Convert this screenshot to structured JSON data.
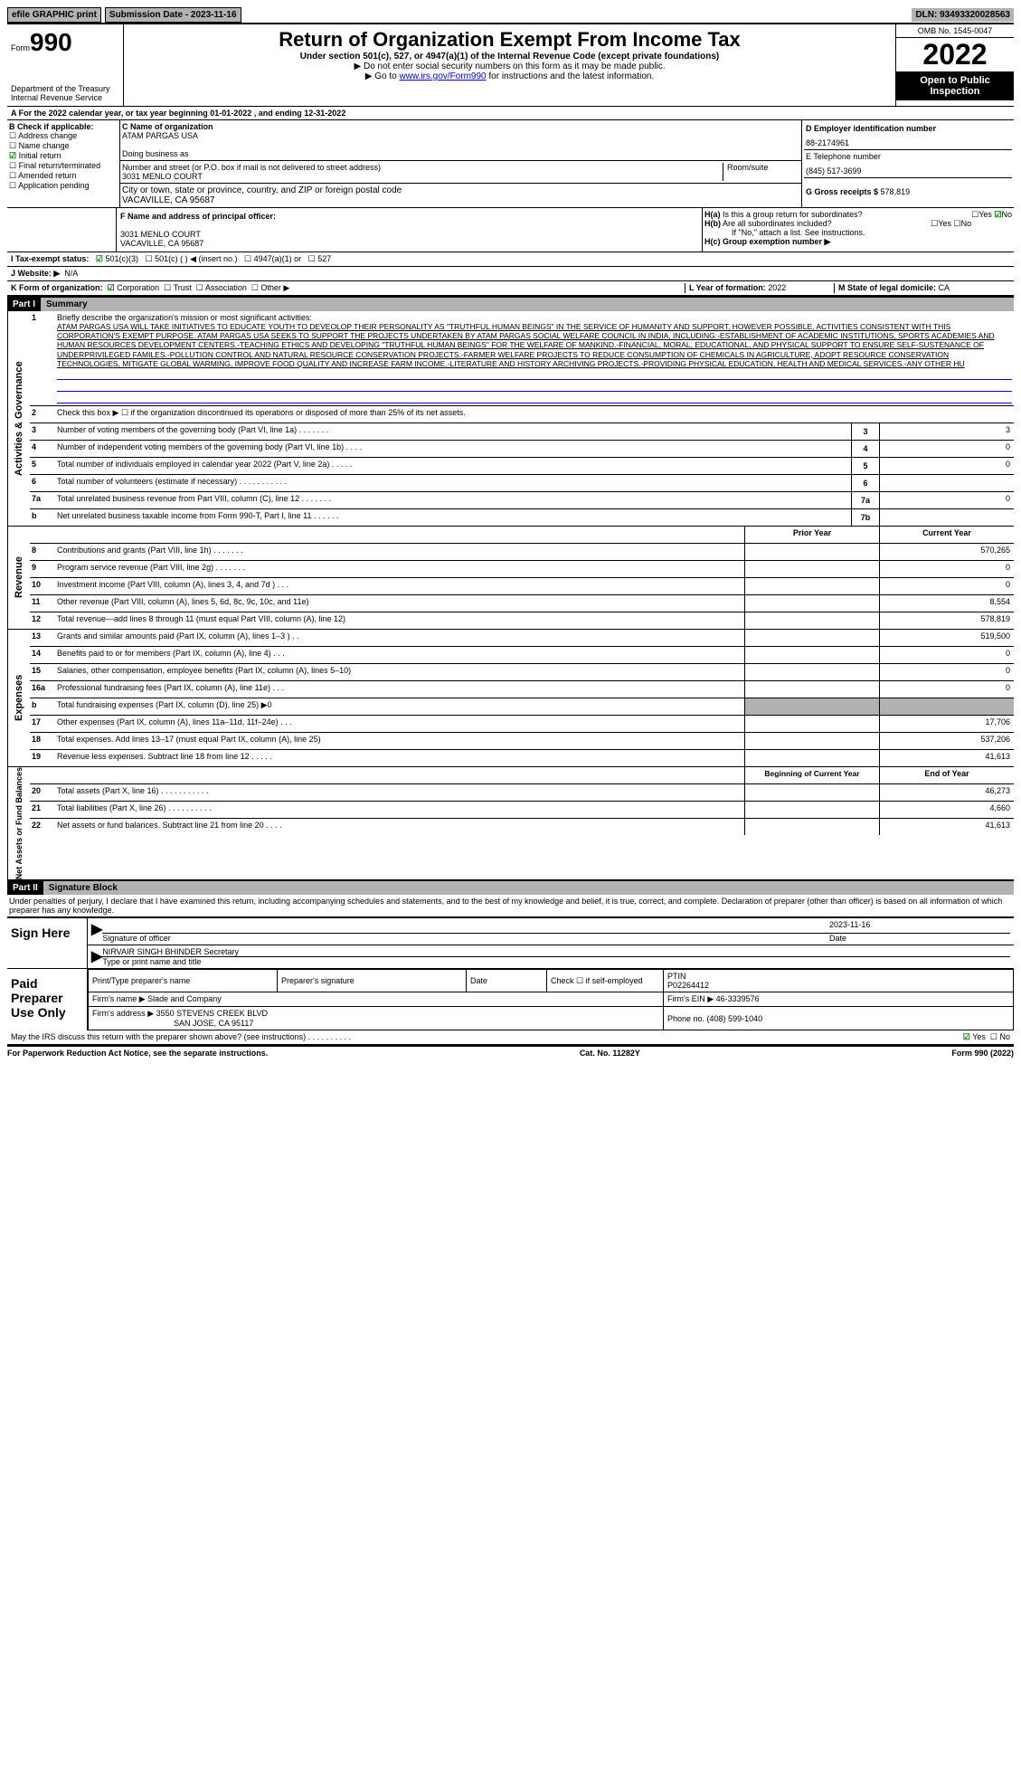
{
  "topbar": {
    "efile": "efile GRAPHIC print",
    "subdate_label": "Submission Date - ",
    "subdate": "2023-11-16",
    "dln_label": "DLN: ",
    "dln": "93493320028563"
  },
  "header": {
    "form_prefix": "Form",
    "form_number": "990",
    "title": "Return of Organization Exempt From Income Tax",
    "subtitle": "Under section 501(c), 527, or 4947(a)(1) of the Internal Revenue Code (except private foundations)",
    "note1": "▶ Do not enter social security numbers on this form as it may be made public.",
    "note2_pre": "▶ Go to ",
    "note2_link": "www.irs.gov/Form990",
    "note2_post": " for instructions and the latest information.",
    "dept": "Department of the Treasury",
    "irs": "Internal Revenue Service",
    "omb": "OMB No. 1545-0047",
    "year": "2022",
    "open": "Open to Public Inspection"
  },
  "line_a": "A For the 2022 calendar year, or tax year beginning 01-01-2022    , and ending 12-31-2022",
  "col_b": {
    "header": "B Check if applicable:",
    "items": [
      "Address change",
      "Name change",
      "Initial return",
      "Final return/terminated",
      "Amended return",
      "Application pending"
    ],
    "checked_index": 2
  },
  "col_c": {
    "name_label": "C Name of organization",
    "name": "ATAM PARGAS USA",
    "dba_label": "Doing business as",
    "addr_label": "Number and street (or P.O. box if mail is not delivered to street address)",
    "room_label": "Room/suite",
    "addr": "3031 MENLO COURT",
    "city_label": "City or town, state or province, country, and ZIP or foreign postal code",
    "city": "VACAVILLE, CA  95687"
  },
  "col_d": {
    "ein_label": "D Employer identification number",
    "ein": "88-2174961",
    "phone_label": "E Telephone number",
    "phone": "(845) 517-3699",
    "gross_label": "G Gross receipts $ ",
    "gross": "578,819"
  },
  "row_f": {
    "f_label": "F  Name and address of principal officer:",
    "f_addr1": "3031 MENLO COURT",
    "f_addr2": "VACAVILLE, CA  95687",
    "ha_label": "H(a)  Is this a group return for subordinates?",
    "ha_yes": "Yes",
    "ha_no": "No",
    "hb_label": "H(b)  Are all subordinates included?",
    "hb_note": "If \"No,\" attach a list. See instructions.",
    "hc_label": "H(c)  Group exemption number ▶"
  },
  "row_i": {
    "label": "I  Tax-exempt status:",
    "opts": [
      "501(c)(3)",
      "501(c) (  ) ◀ (insert no.)",
      "4947(a)(1) or",
      "527"
    ]
  },
  "row_j": {
    "label": "J  Website: ▶",
    "val": "N/A"
  },
  "row_k": {
    "label": "K Form of organization:",
    "opts": [
      "Corporation",
      "Trust",
      "Association",
      "Other ▶"
    ],
    "l_label": "L Year of formation: ",
    "l_val": "2022",
    "m_label": "M State of legal domicile: ",
    "m_val": "CA"
  },
  "part1": {
    "header": "Part I",
    "title": "Summary",
    "q1": "Briefly describe the organization's mission or most significant activities:",
    "mission": "ATAM PARGAS USA WILL TAKE INITIATIVES TO EDUCATE YOUTH TO DEVEOLOP THEIR PERSONALITY AS \"TRUTHFUL HUMAN BEINGS\" IN THE SERVICE OF HUMANITY AND SUPPORT, HOWEVER POSSIBLE, ACTIVITIES CONSISTENT WITH THIS CORPORATION'S EXEMPT PURPOSE. ATAM PARGAS USA SEEKS TO SUPPORT THE PROJECTS UNDERTAKEN BY ATAM PARGAS SOCIAL WELFARE COUNCIL IN INDIA, INCLUDING:-ESTABLISHMENT OF ACADEMIC INSTITUTIONS, SPORTS ACADEMIES AND HUMAN RESOURCES DEVELOPMENT CENTERS.-TEACHING ETHICS AND DEVELOPING \"TRUTHFUL HUMAN BEINGS\" FOR THE WELFARE OF MANKIND.-FINANCIAL, MORAL, EDUCATIONAL, AND PHYSICAL SUPPORT TO ENSURE SELF-SUSTENANCE OF UNDERPRIVILEGED FAMILES.-POLLUTION CONTROL AND NATURAL RESOURCE CONSERVATION PROJECTS.-FARMER WELFARE PROJECTS TO REDUCE CONSUMPTION OF CHEMICALS IN AGRICULTURE, ADOPT RESOURCE CONSERVATION TECHNOLOGIES, MITIGATE GLOBAL WARMING, IMPROVE FOOD QUALITY AND INCREASE FARM INCOME.-LITERATURE AND HISTORY ARCHIVING PROJECTS.-PROVIDING PHYSICAL EDUCATION, HEALTH AND MEDICAL SERVICES.-ANY OTHER HU",
    "q2": "Check this box ▶ ☐ if the organization discontinued its operations or disposed of more than 25% of its net assets.",
    "governance_label": "Activities & Governance",
    "revenue_label": "Revenue",
    "expenses_label": "Expenses",
    "netassets_label": "Net Assets or Fund Balances",
    "rows_gov": [
      {
        "n": "3",
        "t": "Number of voting members of the governing body (Part VI, line 1a)    .    .    .    .    .    .    .",
        "k": "3",
        "v": "3"
      },
      {
        "n": "4",
        "t": "Number of independent voting members of the governing body (Part VI, line 1b)    .    .    .    .",
        "k": "4",
        "v": "0"
      },
      {
        "n": "5",
        "t": "Total number of individuals employed in calendar year 2022 (Part V, line 2a)    .    .    .    .    .",
        "k": "5",
        "v": "0"
      },
      {
        "n": "6",
        "t": "Total number of volunteers (estimate if necessary)    .    .    .    .    .    .    .    .    .    .    .",
        "k": "6",
        "v": ""
      },
      {
        "n": "7a",
        "t": "Total unrelated business revenue from Part VIII, column (C), line 12    .    .    .    .    .    .    .",
        "k": "7a",
        "v": "0"
      },
      {
        "n": "b",
        "t": "Net unrelated business taxable income from Form 990-T, Part I, line 11    .    .    .    .    .    .",
        "k": "7b",
        "v": ""
      }
    ],
    "prior_year": "Prior Year",
    "current_year": "Current Year",
    "rows_rev": [
      {
        "n": "8",
        "t": "Contributions and grants (Part VIII, line 1h)    .    .    .    .    .    .    .",
        "py": "",
        "cy": "570,265"
      },
      {
        "n": "9",
        "t": "Program service revenue (Part VIII, line 2g)    .    .    .    .    .    .    .",
        "py": "",
        "cy": "0"
      },
      {
        "n": "10",
        "t": "Investment income (Part VIII, column (A), lines 3, 4, and 7d )    .    .    .",
        "py": "",
        "cy": "0"
      },
      {
        "n": "11",
        "t": "Other revenue (Part VIII, column (A), lines 5, 6d, 8c, 9c, 10c, and 11e)",
        "py": "",
        "cy": "8,554"
      },
      {
        "n": "12",
        "t": "Total revenue—add lines 8 through 11 (must equal Part VIII, column (A), line 12)",
        "py": "",
        "cy": "578,819"
      }
    ],
    "rows_exp": [
      {
        "n": "13",
        "t": "Grants and similar amounts paid (Part IX, column (A), lines 1–3 )    .    .",
        "py": "",
        "cy": "519,500"
      },
      {
        "n": "14",
        "t": "Benefits paid to or for members (Part IX, column (A), line 4)    .    .    .",
        "py": "",
        "cy": "0"
      },
      {
        "n": "15",
        "t": "Salaries, other compensation, employee benefits (Part IX, column (A), lines 5–10)",
        "py": "",
        "cy": "0"
      },
      {
        "n": "16a",
        "t": "Professional fundraising fees (Part IX, column (A), line 11e)    .    .    .",
        "py": "",
        "cy": "0"
      },
      {
        "n": "b",
        "t": "Total fundraising expenses (Part IX, column (D), line 25) ▶0",
        "py": "gray",
        "cy": "gray"
      },
      {
        "n": "17",
        "t": "Other expenses (Part IX, column (A), lines 11a–11d, 11f–24e)    .    .    .",
        "py": "",
        "cy": "17,706"
      },
      {
        "n": "18",
        "t": "Total expenses. Add lines 13–17 (must equal Part IX, column (A), line 25)",
        "py": "",
        "cy": "537,206"
      },
      {
        "n": "19",
        "t": "Revenue less expenses. Subtract line 18 from line 12    .    .    .    .    .",
        "py": "",
        "cy": "41,613"
      }
    ],
    "beg_year": "Beginning of Current Year",
    "end_year": "End of Year",
    "rows_net": [
      {
        "n": "20",
        "t": "Total assets (Part X, line 16)    .    .    .    .    .    .    .    .    .    .    .",
        "py": "",
        "cy": "46,273"
      },
      {
        "n": "21",
        "t": "Total liabilities (Part X, line 26)    .    .    .    .    .    .    .    .    .    .",
        "py": "",
        "cy": "4,660"
      },
      {
        "n": "22",
        "t": "Net assets or fund balances. Subtract line 21 from line 20    .    .    .    .",
        "py": "",
        "cy": "41,613"
      }
    ]
  },
  "part2": {
    "header": "Part II",
    "title": "Signature Block",
    "penalty": "Under penalties of perjury, I declare that I have examined this return, including accompanying schedules and statements, and to the best of my knowledge and belief, it is true, correct, and complete. Declaration of preparer (other than officer) is based on all information of which preparer has any knowledge.",
    "sign_here": "Sign Here",
    "sig_officer": "Signature of officer",
    "sig_date": "2023-11-16",
    "date_label": "Date",
    "officer_name": "NIRVAIR SINGH BHINDER Secretary",
    "type_label": "Type or print name and title",
    "paid": "Paid Preparer Use Only",
    "prep_name_label": "Print/Type preparer's name",
    "prep_sig_label": "Preparer's signature",
    "check_self": "Check ☐ if self-employed",
    "ptin_label": "PTIN",
    "ptin": "P02264412",
    "firm_name_label": "Firm's name    ▶ ",
    "firm_name": "Slade and Company",
    "firm_ein_label": "Firm's EIN ▶ ",
    "firm_ein": "46-3339576",
    "firm_addr_label": "Firm's address ▶ ",
    "firm_addr1": "3550 STEVENS CREEK BLVD",
    "firm_addr2": "SAN JOSE, CA  95117",
    "firm_phone_label": "Phone no. ",
    "firm_phone": "(408) 599-1040",
    "discuss": "May the IRS discuss this return with the preparer shown above? (see instructions)    .    .    .    .    .    .    .    .    .    .",
    "yes": "Yes",
    "no": "No"
  },
  "footer": {
    "left": "For Paperwork Reduction Act Notice, see the separate instructions.",
    "mid": "Cat. No. 11282Y",
    "right": "Form 990 (2022)"
  },
  "colors": {
    "gray": "#b2b2b2",
    "black": "#000000",
    "link": "#0000cc",
    "check": "#008000"
  }
}
